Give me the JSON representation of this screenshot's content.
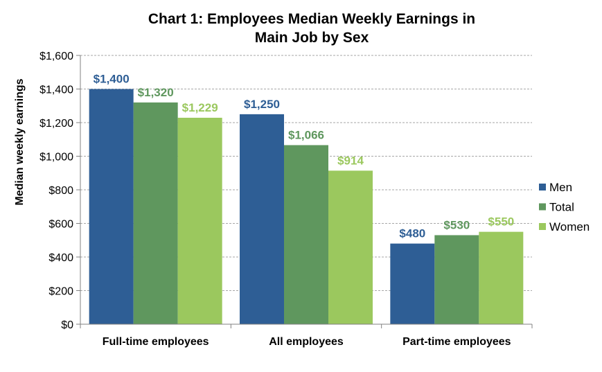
{
  "chart_data": {
    "type": "bar",
    "title": [
      "Chart 1: Employees Median Weekly Earnings in",
      "Main Job by Sex"
    ],
    "xlabel": "",
    "ylabel": "Median weekly earnings",
    "ylim": [
      0,
      1600
    ],
    "yticks": [
      0,
      200,
      400,
      600,
      800,
      1000,
      1200,
      1400,
      1600
    ],
    "ytick_labels": [
      "$0",
      "$200",
      "$400",
      "$600",
      "$800",
      "$1,000",
      "$1,200",
      "$1,400",
      "$1,600"
    ],
    "grid": true,
    "legend_position": "right",
    "categories": [
      "Full-time employees",
      "All employees",
      "Part-time employees"
    ],
    "series": [
      {
        "name": "Men",
        "color": "#2E5E95",
        "values": [
          1400,
          1250,
          480
        ],
        "labels": [
          "$1,400",
          "$1,250",
          "$480"
        ]
      },
      {
        "name": "Total",
        "color": "#5F975E",
        "values": [
          1320,
          1066,
          530
        ],
        "labels": [
          "$1,320",
          "$1,066",
          "$530"
        ]
      },
      {
        "name": "Women",
        "color": "#9BC85E",
        "values": [
          1229,
          914,
          550
        ],
        "labels": [
          "$1,229",
          "$914",
          "$550"
        ]
      }
    ]
  }
}
